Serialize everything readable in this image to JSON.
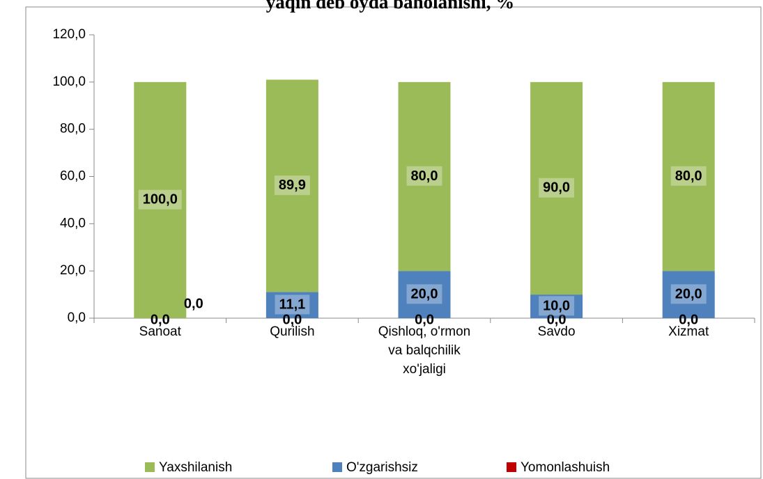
{
  "chart_data": {
    "type": "bar",
    "stacked": true,
    "title": "yaqin deb oyda baholanishi, %",
    "categories": [
      "Sanoat",
      "Qurilish",
      "Qishloq, o'rmon va balqchilik xo'jaligi",
      "Savdo",
      "Xizmat"
    ],
    "series": [
      {
        "name": "Yomonlashuish",
        "color": "#c00000",
        "values": [
          0,
          0,
          0,
          0,
          0
        ],
        "value_labels": [
          "0,0",
          "0,0",
          "0,0",
          "0,0",
          "0,0"
        ]
      },
      {
        "name": "O'zgarishsiz",
        "color": "#4f81bd",
        "values": [
          0,
          11.1,
          20,
          10,
          20
        ],
        "value_labels": [
          "0,0",
          "11,1",
          "20,0",
          "10,0",
          "20,0"
        ]
      },
      {
        "name": "Yaxshilanish",
        "color": "#9bbb59",
        "values": [
          100,
          89.9,
          80,
          90,
          80
        ],
        "value_labels": [
          "100,0",
          "89,9",
          "80,0",
          "90,0",
          "80,0"
        ]
      }
    ],
    "legend_order": [
      "Yaxshilanish",
      "O'zgarishsiz",
      "Yomonlashuish"
    ],
    "ylim": [
      0,
      120
    ],
    "yticks": [
      {
        "value": 0,
        "label": "0,0"
      },
      {
        "value": 20,
        "label": "20,0"
      },
      {
        "value": 40,
        "label": "40,0"
      },
      {
        "value": 60,
        "label": "60,0"
      },
      {
        "value": 80,
        "label": "80,0"
      },
      {
        "value": 100,
        "label": "100,0"
      },
      {
        "value": 120,
        "label": "120,0"
      }
    ]
  }
}
